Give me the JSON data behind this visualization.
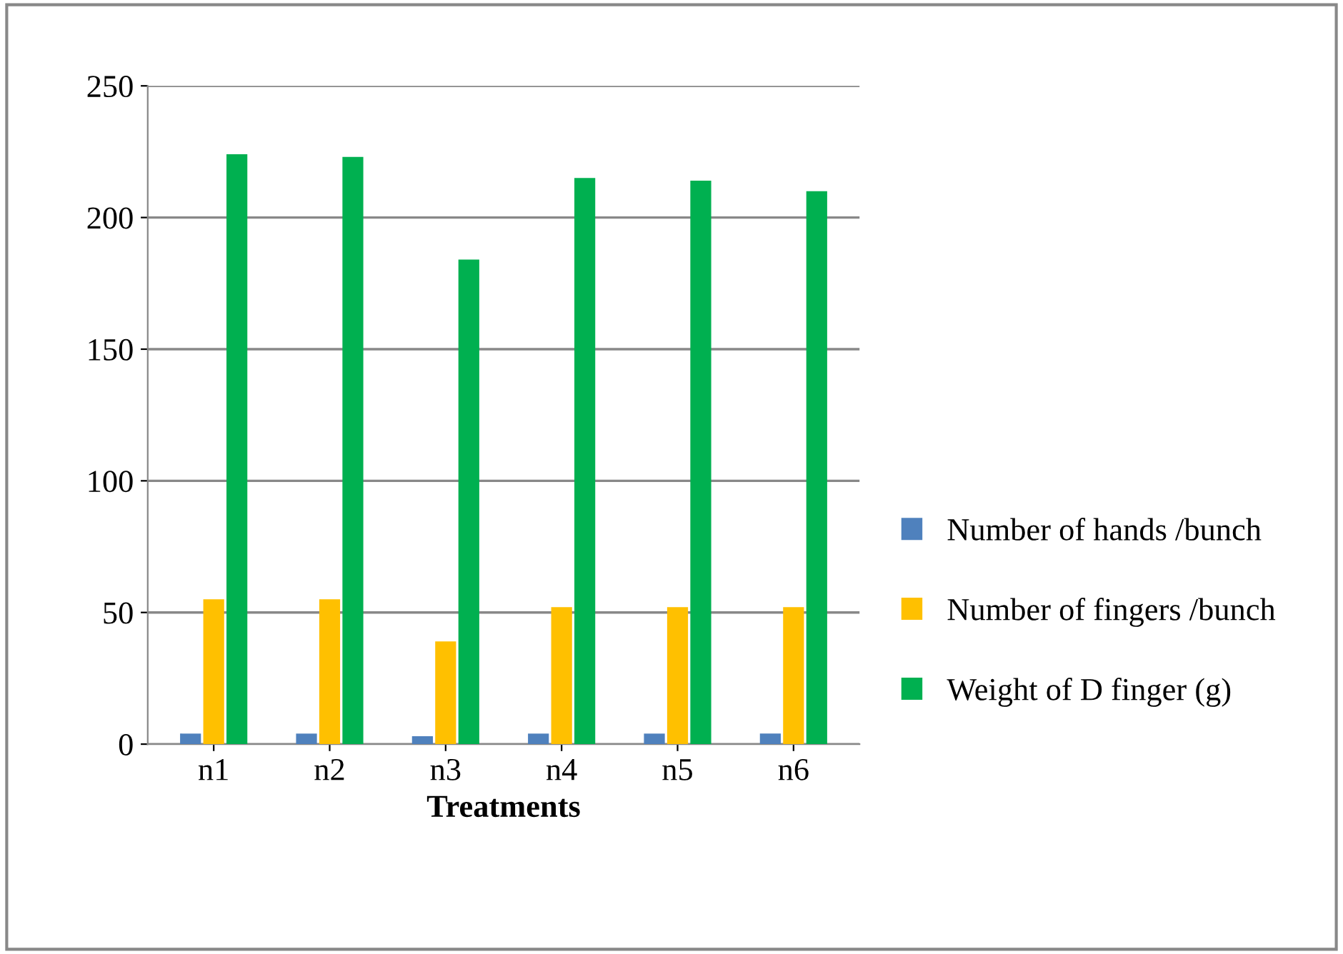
{
  "chart_data": {
    "type": "bar",
    "xlabel": "Treatments",
    "categories": [
      "n1",
      "n2",
      "n3",
      "n4",
      "n5",
      "n6"
    ],
    "series": [
      {
        "name": "Number of hands /bunch",
        "color": "#4f81bd",
        "values": [
          4,
          4,
          3,
          4,
          4,
          4
        ]
      },
      {
        "name": "Number of fingers /bunch",
        "color": "#ffc000",
        "values": [
          55,
          55,
          39,
          52,
          52,
          52
        ]
      },
      {
        "name": "Weight of D finger (g)",
        "color": "#00b050",
        "values": [
          224,
          223,
          184,
          215,
          214,
          210
        ]
      }
    ],
    "ylim": [
      0,
      250
    ],
    "yticks": [
      0,
      50,
      100,
      150,
      200,
      250
    ],
    "grid": "y",
    "legend": "right"
  }
}
